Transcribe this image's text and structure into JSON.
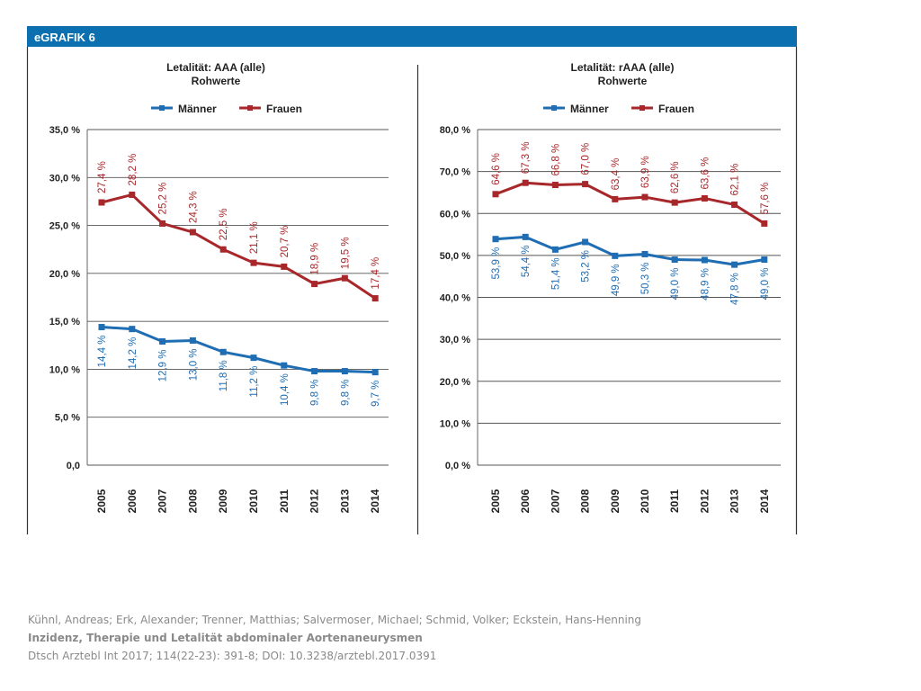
{
  "figure_label": "eGRAFIK 6",
  "colors": {
    "header_bg": "#0b6fb0",
    "men": "#1f6db3",
    "women": "#a8272a",
    "grid": "#555555"
  },
  "legend": {
    "men": "Männer",
    "women": "Frauen"
  },
  "chart_data": [
    {
      "type": "line",
      "title": "Letalität: AAA (alle)",
      "subtitle": "Rohwerte",
      "categories": [
        "2005",
        "2006",
        "2007",
        "2008",
        "2009",
        "2010",
        "2011",
        "2012",
        "2013",
        "2014"
      ],
      "ylim": [
        0,
        35
      ],
      "yticks": [
        0,
        5,
        10,
        15,
        20,
        25,
        30,
        35
      ],
      "ytick_labels": [
        "0,0",
        "5,0 %",
        "10,0 %",
        "15,0 %",
        "20,0 %",
        "25,0 %",
        "30,0 %",
        "35,0 %"
      ],
      "series": [
        {
          "name": "Männer",
          "values": [
            14.4,
            14.2,
            12.9,
            13.0,
            11.8,
            11.2,
            10.4,
            9.8,
            9.8,
            9.7
          ],
          "labels": [
            "14,4 %",
            "14,2 %",
            "12,9 %",
            "13,0 %",
            "11,8 %",
            "11,2 %",
            "10,4 %",
            "9,8 %",
            "9,8 %",
            "9,7 %"
          ]
        },
        {
          "name": "Frauen",
          "values": [
            27.4,
            28.2,
            25.2,
            24.3,
            22.5,
            21.1,
            20.7,
            18.9,
            19.5,
            17.4
          ],
          "labels": [
            "27,4 %",
            "28,2 %",
            "25,2 %",
            "24,3 %",
            "22,5 %",
            "21,1 %",
            "20,7 %",
            "18,9 %",
            "19,5 %",
            "17,4 %"
          ]
        }
      ]
    },
    {
      "type": "line",
      "title": "Letalität: rAAA (alle)",
      "subtitle": "Rohwerte",
      "categories": [
        "2005",
        "2006",
        "2007",
        "2008",
        "2009",
        "2010",
        "2011",
        "2012",
        "2013",
        "2014"
      ],
      "ylim": [
        0,
        80
      ],
      "yticks": [
        0,
        10,
        20,
        30,
        40,
        50,
        60,
        70,
        80
      ],
      "ytick_labels": [
        "0,0 %",
        "10,0 %",
        "20,0 %",
        "30,0 %",
        "40,0 %",
        "50,0 %",
        "60,0 %",
        "70,0 %",
        "80,0 %"
      ],
      "series": [
        {
          "name": "Männer",
          "values": [
            53.9,
            54.4,
            51.4,
            53.2,
            49.9,
            50.3,
            49.0,
            48.9,
            47.8,
            49.0
          ],
          "labels": [
            "53,9 %",
            "54,4 %",
            "51,4 %",
            "53,2 %",
            "49,9 %",
            "50,3 %",
            "49,0 %",
            "48,9 %",
            "47,8 %",
            "49,0 %"
          ]
        },
        {
          "name": "Frauen",
          "values": [
            64.6,
            67.3,
            66.8,
            67.0,
            63.4,
            63.9,
            62.6,
            63.6,
            62.1,
            57.6
          ],
          "labels": [
            "64,6 %",
            "67,3 %",
            "66,8 %",
            "67,0 %",
            "63,4 %",
            "63,9 %",
            "62,6 %",
            "63,6 %",
            "62,1 %",
            "57,6 %"
          ]
        }
      ]
    }
  ],
  "credits": {
    "authors": "Kühnl, Andreas; Erk, Alexander; Trenner, Matthias; Salvermoser, Michael; Schmid, Volker; Eckstein, Hans-Henning",
    "title": "Inzidenz, Therapie und Letalität abdominaler Aortenaneurysmen",
    "citation": "Dtsch Arztebl Int 2017; 114(22-23): 391-8; DOI: 10.3238/arztebl.2017.0391"
  }
}
